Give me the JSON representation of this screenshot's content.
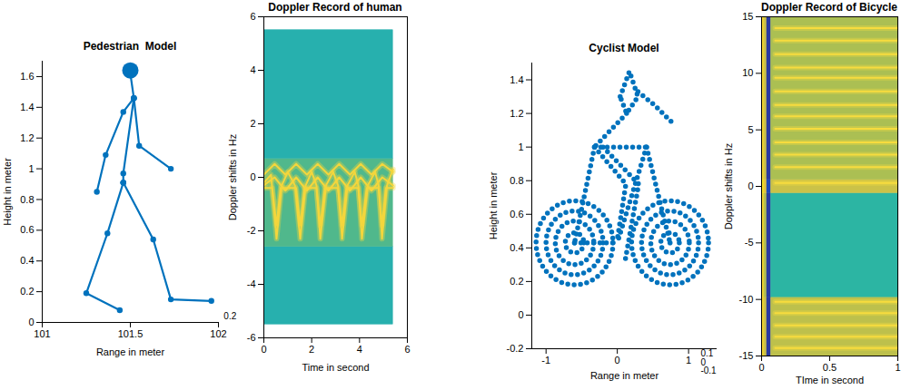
{
  "chart_data": [
    {
      "type": "line",
      "title": "Pedestrian  Model",
      "xlabel": "Range in meter",
      "ylabel": "Height in meter",
      "xlim": [
        101,
        102
      ],
      "xticks": [
        101,
        101.5,
        102
      ],
      "ylim": [
        0,
        1.7
      ],
      "yticks": [
        0,
        0.2,
        0.4,
        0.6,
        0.8,
        1,
        1.2,
        1.4,
        1.6
      ],
      "color": "#0072bd",
      "marker": "circle",
      "line_style": "solid",
      "head": {
        "x": 101.5,
        "y": 1.64
      },
      "segments": [
        {
          "x": [
            101.5,
            101.52,
            101.46,
            101.36,
            101.31
          ],
          "y": [
            1.62,
            1.46,
            1.37,
            1.09,
            0.85
          ]
        },
        {
          "x": [
            101.52,
            101.55,
            101.73
          ],
          "y": [
            1.46,
            1.15,
            1.0
          ]
        },
        {
          "x": [
            101.52,
            101.46,
            101.46
          ],
          "y": [
            1.46,
            0.97,
            0.91
          ]
        },
        {
          "x": [
            101.46,
            101.37,
            101.25,
            101.44
          ],
          "y": [
            0.91,
            0.58,
            0.19,
            0.08
          ]
        },
        {
          "x": [
            101.46,
            101.63,
            101.73,
            101.96
          ],
          "y": [
            0.91,
            0.54,
            0.15,
            0.14
          ]
        }
      ],
      "annotations": [
        {
          "text": "0.2",
          "x": 102.03,
          "y": 0.04
        }
      ]
    },
    {
      "type": "heatmap",
      "title": "Doppler Record of human",
      "xlabel": "Time in second",
      "ylabel": "Doppler shifts in Hz",
      "xlim": [
        0,
        6
      ],
      "xticks": [
        0,
        2,
        4,
        6
      ],
      "ylim": [
        -6,
        6
      ],
      "yticks": [
        -6,
        -4,
        -2,
        0,
        2,
        4,
        6
      ],
      "cells": {
        "x_edges": [
          0,
          5.4
        ],
        "y_edges": [
          -5.5,
          -2.6,
          0.7,
          5.5
        ],
        "values": [
          [
            0.45
          ],
          [
            0.55
          ],
          [
            0.45
          ]
        ],
        "clim": [
          0,
          1
        ]
      },
      "traces": {
        "color": "#f4d63c",
        "lines": [
          {
            "x": [
              0,
              0.3,
              0.53,
              0.75,
              1.0,
              1.3,
              1.52,
              1.75,
              2.0,
              2.2,
              2.36,
              2.6,
              2.9,
              3.1,
              3.27,
              3.5,
              3.8,
              3.95,
              4.1,
              4.35,
              4.65,
              4.8,
              4.94,
              5.15,
              5.4
            ],
            "y": [
              -0.2,
              0.1,
              -2.3,
              -0.3,
              0.2,
              -0.3,
              -2.3,
              -0.3,
              0.2,
              -0.3,
              -2.3,
              -0.3,
              0.2,
              -0.3,
              -2.3,
              -0.3,
              0.2,
              -0.3,
              -2.3,
              -0.3,
              0.2,
              -0.3,
              -2.3,
              -0.3,
              0.3
            ]
          },
          {
            "x": [
              0,
              0.35,
              0.53,
              0.7,
              1.35,
              1.52,
              1.7,
              2.2,
              2.36,
              2.55,
              3.1,
              3.27,
              3.45,
              3.95,
              4.1,
              4.3,
              4.8,
              4.94,
              5.1,
              5.4
            ],
            "y": [
              -0.4,
              -0.4,
              -1.8,
              -0.4,
              -0.4,
              -1.8,
              -0.4,
              -0.4,
              -1.8,
              -0.4,
              -0.4,
              -1.8,
              -0.4,
              -0.4,
              -1.8,
              -0.4,
              -0.4,
              -1.8,
              -0.4,
              -0.4
            ]
          },
          {
            "x": [
              0,
              0.45,
              0.9,
              1.35,
              1.8,
              2.25,
              2.7,
              3.15,
              3.6,
              4.05,
              4.5,
              4.95,
              5.4
            ],
            "y": [
              -0.3,
              0,
              -0.5,
              0,
              -0.5,
              0,
              -0.5,
              0,
              -0.5,
              0,
              -0.5,
              0,
              -0.3
            ]
          },
          {
            "x": [
              0,
              0.45,
              0.9,
              1.35,
              1.8,
              2.25,
              2.7,
              3.15,
              3.6,
              4.05,
              4.5,
              4.95,
              5.4
            ],
            "y": [
              0.1,
              0.5,
              0.1,
              0.5,
              0.1,
              0.5,
              0.1,
              0.5,
              0.1,
              0.5,
              0.1,
              0.5,
              0.2
            ]
          }
        ]
      }
    },
    {
      "type": "scatter",
      "title": "Cyclist Model",
      "xlabel": "Range in meter",
      "ylabel": "Height in meter",
      "xlim": [
        -1.2,
        1.4
      ],
      "xticks": [
        -1,
        0,
        1
      ],
      "ylim": [
        -0.2,
        1.5
      ],
      "yticks": [
        -0.2,
        0,
        0.2,
        0.4,
        0.6,
        0.8,
        1,
        1.2,
        1.4
      ],
      "color": "#0072bd",
      "line_style": "dotted",
      "wheels": [
        {
          "hub": {
            "x": -0.6,
            "y": 0.43
          },
          "rings": [
            {
              "x": [
                -0.6,
                -0.06,
                -0.6,
                -1.14
              ],
              "y": [
                0.68,
                0.43,
                0.18,
                0.43
              ]
            },
            {
              "x": [
                -0.6,
                -0.2,
                -0.6,
                -1.0
              ],
              "y": [
                0.62,
                0.43,
                0.24,
                0.43
              ]
            },
            {
              "x": [
                -0.6,
                -0.33,
                -0.6,
                -0.87
              ],
              "y": [
                0.56,
                0.43,
                0.3,
                0.43
              ]
            },
            {
              "x": [
                -0.6,
                -0.47,
                -0.6,
                -0.73
              ],
              "y": [
                0.49,
                0.43,
                0.37,
                0.43
              ]
            }
          ]
        },
        {
          "hub": {
            "x": 0.74,
            "y": 0.43
          },
          "rings": [
            {
              "x": [
                0.74,
                1.28,
                0.74,
                0.2
              ],
              "y": [
                0.68,
                0.43,
                0.18,
                0.43
              ]
            },
            {
              "x": [
                0.74,
                1.14,
                0.74,
                0.34
              ],
              "y": [
                0.62,
                0.43,
                0.24,
                0.43
              ]
            },
            {
              "x": [
                0.74,
                1.01,
                0.74,
                0.47
              ],
              "y": [
                0.56,
                0.43,
                0.3,
                0.43
              ]
            },
            {
              "x": [
                0.74,
                0.87,
                0.74,
                0.61
              ],
              "y": [
                0.49,
                0.43,
                0.37,
                0.43
              ]
            }
          ]
        }
      ],
      "segments": [
        {
          "x": [
            0.04,
            0.17,
            0.29,
            0.13,
            0.04
          ],
          "y": [
            1.3,
            1.45,
            1.3,
            1.2,
            1.3
          ]
        },
        {
          "x": [
            0.29,
            0.52,
            0.76
          ],
          "y": [
            1.33,
            1.25,
            1.15
          ]
        },
        {
          "x": [
            0.13,
            -0.32
          ],
          "y": [
            1.2,
            1.0
          ]
        },
        {
          "x": [
            -0.32,
            0.41
          ],
          "y": [
            1.0,
            1.0
          ]
        },
        {
          "x": [
            -0.32,
            0.12,
            0.0
          ],
          "y": [
            1.0,
            0.78,
            0.45
          ]
        },
        {
          "x": [
            -0.2,
            0.3,
            0.1
          ],
          "y": [
            1.0,
            0.78,
            0.3
          ]
        },
        {
          "x": [
            0.41,
            0.0
          ],
          "y": [
            1.0,
            0.43
          ]
        },
        {
          "x": [
            -0.6,
            0.0
          ],
          "y": [
            0.43,
            0.43
          ]
        },
        {
          "x": [
            -0.32,
            -0.6
          ],
          "y": [
            1.0,
            0.43
          ]
        },
        {
          "x": [
            0.41,
            0.74
          ],
          "y": [
            1.0,
            0.43
          ]
        }
      ],
      "annotations": [
        {
          "text": "0.1",
          "x": 1.17,
          "y": -0.23
        },
        {
          "text": "0",
          "x": 1.17,
          "y": -0.28
        },
        {
          "text": "-0.1",
          "x": 1.17,
          "y": -0.33
        }
      ]
    },
    {
      "type": "heatmap",
      "title": "Doppler Record of Bicycle",
      "xlabel": "TIme in second",
      "ylabel": "Doppler shifts in Hz",
      "xlim": [
        0,
        1
      ],
      "xticks": [
        0,
        0.5,
        1
      ],
      "ylim": [
        -15,
        15
      ],
      "yticks": [
        -15,
        -10,
        -5,
        0,
        5,
        10,
        15
      ],
      "cells": {
        "x_edges": [
          0,
          0.02,
          0.04,
          0.07,
          1
        ],
        "y_edges": [
          -15,
          -9.8,
          -0.6,
          0.6,
          15
        ],
        "values": [
          [
            0.88,
            0.75,
            0.05,
            0.72
          ],
          [
            0.88,
            0.7,
            0.05,
            0.5
          ],
          [
            0.92,
            0.8,
            0.1,
            0.75
          ],
          [
            0.88,
            0.75,
            0.05,
            0.68
          ]
        ],
        "clim": [
          0,
          1
        ]
      },
      "traces": {
        "color": "#f7dc3e",
        "lines": [
          {
            "x": [
              0.1,
              1
            ],
            "y": [
              0.3,
              0.3
            ]
          },
          {
            "x": [
              0.1,
              1
            ],
            "y": [
              1.7,
              1.7
            ]
          },
          {
            "x": [
              0.1,
              1
            ],
            "y": [
              2.8,
              2.8
            ]
          },
          {
            "x": [
              0.1,
              1
            ],
            "y": [
              3.9,
              3.9
            ]
          },
          {
            "x": [
              0.1,
              1
            ],
            "y": [
              5.1,
              5.1
            ]
          },
          {
            "x": [
              0.1,
              1
            ],
            "y": [
              6.2,
              6.2
            ]
          },
          {
            "x": [
              0.1,
              1
            ],
            "y": [
              7.2,
              7.2
            ]
          },
          {
            "x": [
              0.1,
              1
            ],
            "y": [
              8.4,
              8.4
            ]
          },
          {
            "x": [
              0.1,
              1
            ],
            "y": [
              9.6,
              9.6
            ]
          },
          {
            "x": [
              0.1,
              1
            ],
            "y": [
              10.5,
              10.5
            ]
          },
          {
            "x": [
              0.1,
              1
            ],
            "y": [
              11.7,
              11.7
            ]
          },
          {
            "x": [
              0.1,
              1
            ],
            "y": [
              12.9,
              12.9
            ]
          },
          {
            "x": [
              0.1,
              1
            ],
            "y": [
              14.0,
              14.0
            ]
          },
          {
            "x": [
              0.1,
              1
            ],
            "y": [
              -10.2,
              -10.2
            ]
          },
          {
            "x": [
              0.1,
              1
            ],
            "y": [
              -11.2,
              -11.2
            ]
          },
          {
            "x": [
              0.1,
              1
            ],
            "y": [
              -12.3,
              -12.3
            ]
          },
          {
            "x": [
              0.1,
              1
            ],
            "y": [
              -13.3,
              -13.3
            ]
          },
          {
            "x": [
              0.1,
              1
            ],
            "y": [
              -14.3,
              -14.3
            ]
          }
        ]
      }
    }
  ]
}
